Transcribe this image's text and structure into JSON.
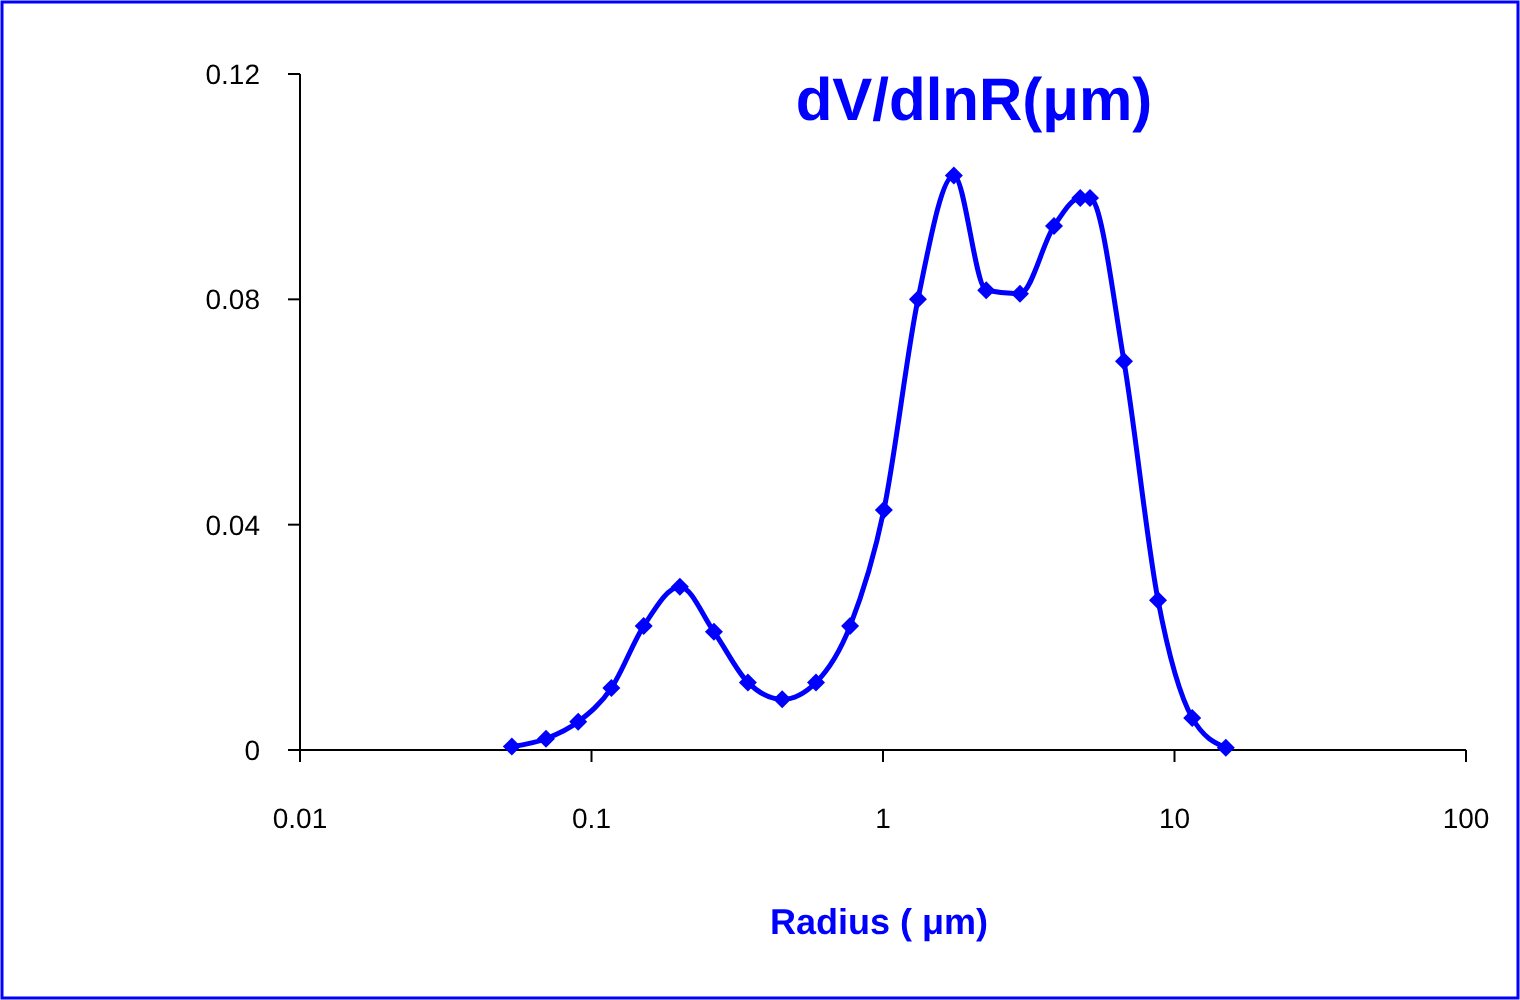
{
  "chart_data": {
    "type": "line",
    "title": "dV/dlnR(μm)",
    "xlabel": "Radius ( μm)",
    "log": "x",
    "xlim": [
      0.01,
      100
    ],
    "xticks": [
      {
        "value": 0.01,
        "label": "0.01"
      },
      {
        "value": 0.1,
        "label": "0.1"
      },
      1,
      10,
      100
    ],
    "ylim": [
      0,
      0.12
    ],
    "yticks": [
      0,
      {
        "value": 0.04,
        "label": "0.04"
      },
      {
        "value": 0.08,
        "label": "0.08"
      },
      {
        "value": 0.12,
        "label": "0.12"
      }
    ],
    "grid": false,
    "marker": "diamond",
    "line_style": "solid",
    "series": [
      {
        "color": "#0000ff",
        "x": [
          0.0533,
          0.0698,
          0.09,
          0.117,
          0.151,
          0.201,
          0.263,
          0.344,
          0.451,
          0.589,
          0.771,
          1.007,
          1.318,
          1.75,
          2.26,
          2.95,
          3.86,
          4.75,
          5.13,
          6.71,
          8.78,
          11.5,
          15.0
        ],
        "values": [
          0.0006,
          0.002,
          0.005,
          0.011,
          0.022,
          0.029,
          0.021,
          0.012,
          0.009,
          0.012,
          0.022,
          0.0426,
          0.08,
          0.102,
          0.0816,
          0.081,
          0.093,
          0.098,
          0.098,
          0.069,
          0.0266,
          0.0057,
          0.0004
        ]
      }
    ]
  }
}
